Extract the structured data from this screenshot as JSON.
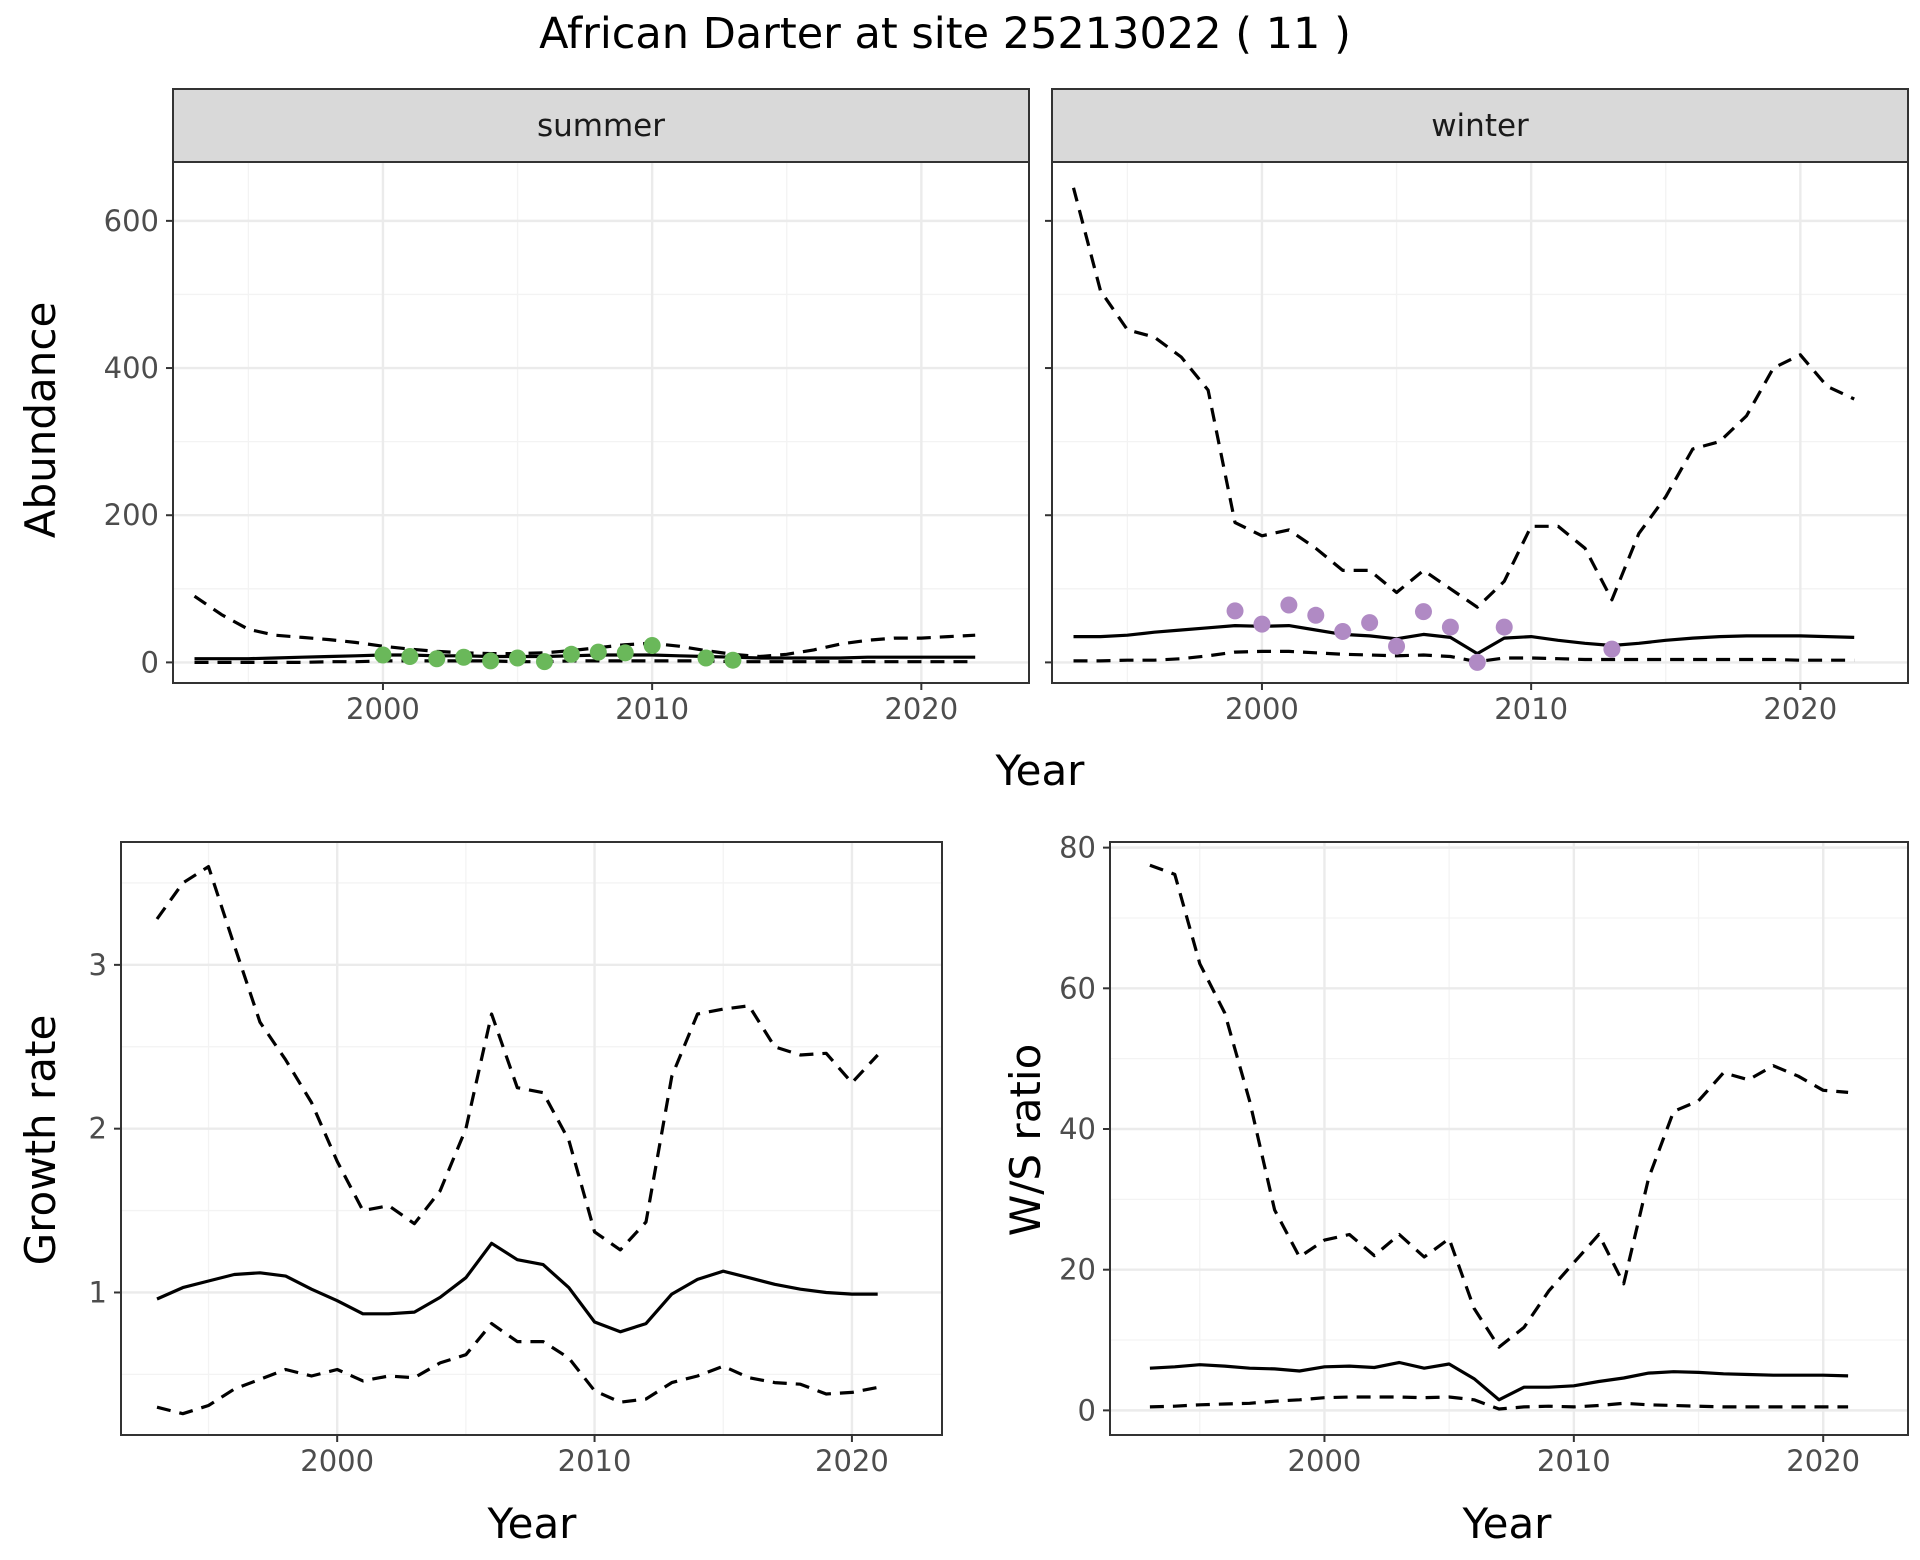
{
  "title": "African Darter at site 25213022 ( 11 )",
  "colors": {
    "summer_points": "#6ab85a",
    "winter_points": "#b08ac4",
    "line": "#000000",
    "grid_major": "#ebebeb",
    "grid_minor": "#f3f3f3",
    "strip_bg": "#d9d9d9",
    "panel_border": "#333333",
    "tick_text": "#4d4d4d"
  },
  "chart_data": [
    {
      "type": "line",
      "facet": "summer",
      "xlabel": "Year",
      "ylabel": "Abundance",
      "xlim": [
        1992.2,
        2024.0
      ],
      "ylim": [
        -28,
        680
      ],
      "xticks": [
        2000,
        2010,
        2020
      ],
      "yticks": [
        0,
        200,
        400,
        600
      ],
      "grid": true,
      "series": [
        {
          "role": "estimate",
          "style": "solid",
          "x": [
            1993,
            1994,
            1995,
            1996,
            1997,
            1998,
            1999,
            2000,
            2001,
            2002,
            2003,
            2004,
            2005,
            2006,
            2007,
            2008,
            2009,
            2010,
            2011,
            2012,
            2013,
            2014,
            2015,
            2016,
            2017,
            2018,
            2019,
            2020,
            2021,
            2022
          ],
          "y": [
            5,
            5,
            5,
            6,
            7,
            8,
            9,
            10,
            10,
            9,
            9,
            8,
            8,
            8,
            9,
            10,
            10,
            10,
            9,
            8,
            7,
            6,
            6,
            6,
            6,
            7,
            7,
            7,
            7,
            7
          ]
        },
        {
          "role": "upper",
          "style": "dashed",
          "x": [
            1993,
            1994,
            1995,
            1996,
            1997,
            1998,
            1999,
            2000,
            2001,
            2002,
            2003,
            2004,
            2005,
            2006,
            2007,
            2008,
            2009,
            2010,
            2011,
            2012,
            2013,
            2014,
            2015,
            2016,
            2017,
            2018,
            2019,
            2020,
            2021,
            2022
          ],
          "y": [
            90,
            65,
            45,
            37,
            34,
            31,
            27,
            22,
            18,
            15,
            13,
            12,
            12,
            13,
            16,
            20,
            24,
            26,
            22,
            16,
            11,
            8,
            11,
            17,
            25,
            30,
            33,
            33,
            35,
            37
          ]
        },
        {
          "role": "lower",
          "style": "dashed",
          "x": [
            1993,
            1994,
            1995,
            1996,
            1997,
            1998,
            1999,
            2000,
            2001,
            2002,
            2003,
            2004,
            2005,
            2006,
            2007,
            2008,
            2009,
            2010,
            2011,
            2012,
            2013,
            2014,
            2015,
            2016,
            2017,
            2018,
            2019,
            2020,
            2021,
            2022
          ],
          "y": [
            0,
            0,
            0,
            0,
            0,
            1,
            1,
            2,
            2,
            2,
            2,
            2,
            1,
            1,
            2,
            2,
            2,
            2,
            2,
            2,
            1,
            1,
            1,
            1,
            1,
            1,
            1,
            1,
            1,
            1
          ]
        }
      ],
      "points": {
        "x": [
          2000,
          2001,
          2002,
          2003,
          2004,
          2005,
          2006,
          2007,
          2008,
          2009,
          2010,
          2012,
          2013
        ],
        "y": [
          10,
          8,
          5,
          7,
          2,
          6,
          1,
          11,
          14,
          13,
          23,
          6,
          3
        ]
      }
    },
    {
      "type": "line",
      "facet": "winter",
      "xlabel": "Year",
      "ylabel": "Abundance",
      "xlim": [
        1992.2,
        2024.0
      ],
      "ylim": [
        -28,
        680
      ],
      "xticks": [
        2000,
        2010,
        2020
      ],
      "yticks": [
        0,
        200,
        400,
        600
      ],
      "grid": true,
      "series": [
        {
          "role": "estimate",
          "style": "solid",
          "x": [
            1993,
            1994,
            1995,
            1996,
            1997,
            1998,
            1999,
            2000,
            2001,
            2002,
            2003,
            2004,
            2005,
            2006,
            2007,
            2008,
            2009,
            2010,
            2011,
            2012,
            2013,
            2014,
            2015,
            2016,
            2017,
            2018,
            2019,
            2020,
            2021,
            2022
          ],
          "y": [
            35,
            35,
            37,
            41,
            44,
            47,
            50,
            49,
            50,
            44,
            38,
            36,
            32,
            38,
            34,
            12,
            33,
            35,
            30,
            26,
            23,
            26,
            30,
            33,
            35,
            36,
            36,
            36,
            35,
            34
          ]
        },
        {
          "role": "upper",
          "style": "dashed",
          "x": [
            1993,
            1994,
            1995,
            1996,
            1997,
            1998,
            1999,
            2000,
            2001,
            2002,
            2003,
            2004,
            2005,
            2006,
            2007,
            2008,
            2009,
            2010,
            2011,
            2012,
            2013,
            2014,
            2015,
            2016,
            2017,
            2018,
            2019,
            2020,
            2021,
            2022
          ],
          "y": [
            645,
            505,
            452,
            442,
            415,
            370,
            190,
            172,
            180,
            155,
            125,
            125,
            95,
            125,
            100,
            75,
            110,
            185,
            185,
            155,
            85,
            175,
            225,
            290,
            300,
            335,
            400,
            418,
            375,
            358
          ]
        },
        {
          "role": "lower",
          "style": "dashed",
          "x": [
            1993,
            1994,
            1995,
            1996,
            1997,
            1998,
            1999,
            2000,
            2001,
            2002,
            2003,
            2004,
            2005,
            2006,
            2007,
            2008,
            2009,
            2010,
            2011,
            2012,
            2013,
            2014,
            2015,
            2016,
            2017,
            2018,
            2019,
            2020,
            2021,
            2022
          ],
          "y": [
            2,
            2,
            3,
            3,
            5,
            9,
            14,
            15,
            15,
            13,
            11,
            10,
            9,
            10,
            8,
            1,
            6,
            6,
            5,
            4,
            4,
            4,
            4,
            4,
            4,
            4,
            4,
            3,
            3,
            3
          ]
        }
      ],
      "points": {
        "x": [
          1999,
          2000,
          2001,
          2002,
          2003,
          2004,
          2005,
          2006,
          2007,
          2008,
          2009,
          2013
        ],
        "y": [
          70,
          52,
          78,
          64,
          42,
          54,
          22,
          69,
          48,
          0,
          48,
          18
        ]
      }
    },
    {
      "type": "line",
      "xlabel": "Year",
      "ylabel": "Growth rate",
      "xlim": [
        1991.6,
        2023.5
      ],
      "ylim": [
        0.13,
        3.75
      ],
      "xticks": [
        2000,
        2010,
        2020
      ],
      "yticks": [
        1,
        2,
        3
      ],
      "grid": true,
      "series": [
        {
          "role": "estimate",
          "style": "solid",
          "x": [
            1993,
            1994,
            1995,
            1996,
            1997,
            1998,
            1999,
            2000,
            2001,
            2002,
            2003,
            2004,
            2005,
            2006,
            2007,
            2008,
            2009,
            2010,
            2011,
            2012,
            2013,
            2014,
            2015,
            2016,
            2017,
            2018,
            2019,
            2020,
            2021
          ],
          "y": [
            0.96,
            1.03,
            1.07,
            1.11,
            1.12,
            1.1,
            1.02,
            0.95,
            0.87,
            0.87,
            0.88,
            0.97,
            1.09,
            1.3,
            1.2,
            1.17,
            1.03,
            0.82,
            0.76,
            0.81,
            0.99,
            1.08,
            1.13,
            1.09,
            1.05,
            1.02,
            1.0,
            0.99,
            0.99
          ]
        },
        {
          "role": "upper",
          "style": "dashed",
          "x": [
            1993,
            1994,
            1995,
            1996,
            1997,
            1998,
            1999,
            2000,
            2001,
            2002,
            2003,
            2004,
            2005,
            2006,
            2007,
            2008,
            2009,
            2010,
            2011,
            2012,
            2013,
            2014,
            2015,
            2016,
            2017,
            2018,
            2019,
            2020,
            2021
          ],
          "y": [
            3.28,
            3.5,
            3.6,
            3.12,
            2.65,
            2.42,
            2.16,
            1.8,
            1.5,
            1.53,
            1.42,
            1.62,
            2.0,
            2.7,
            2.25,
            2.22,
            1.93,
            1.37,
            1.26,
            1.43,
            2.32,
            2.7,
            2.73,
            2.75,
            2.5,
            2.45,
            2.46,
            2.28,
            2.45
          ]
        },
        {
          "role": "lower",
          "style": "dashed",
          "x": [
            1993,
            1994,
            1995,
            1996,
            1997,
            1998,
            1999,
            2000,
            2001,
            2002,
            2003,
            2004,
            2005,
            2006,
            2007,
            2008,
            2009,
            2010,
            2011,
            2012,
            2013,
            2014,
            2015,
            2016,
            2017,
            2018,
            2019,
            2020,
            2021
          ],
          "y": [
            0.3,
            0.26,
            0.31,
            0.41,
            0.47,
            0.53,
            0.49,
            0.53,
            0.46,
            0.49,
            0.48,
            0.57,
            0.62,
            0.81,
            0.7,
            0.7,
            0.6,
            0.4,
            0.33,
            0.35,
            0.45,
            0.49,
            0.55,
            0.48,
            0.45,
            0.44,
            0.38,
            0.39,
            0.42
          ]
        }
      ]
    },
    {
      "type": "line",
      "xlabel": "Year",
      "ylabel": "W/S ratio",
      "xlim": [
        1991.4,
        2023.4
      ],
      "ylim": [
        -3.5,
        80.8
      ],
      "xticks": [
        2000,
        2010,
        2020
      ],
      "yticks": [
        0,
        20,
        40,
        60,
        80
      ],
      "grid": true,
      "series": [
        {
          "role": "estimate",
          "style": "solid",
          "x": [
            1993,
            1994,
            1995,
            1996,
            1997,
            1998,
            1999,
            2000,
            2001,
            2002,
            2003,
            2004,
            2005,
            2006,
            2007,
            2008,
            2009,
            2010,
            2011,
            2012,
            2013,
            2014,
            2015,
            2016,
            2017,
            2018,
            2019,
            2020,
            2021
          ],
          "y": [
            6.0,
            6.2,
            6.5,
            6.3,
            6.0,
            5.9,
            5.6,
            6.2,
            6.3,
            6.1,
            6.8,
            6.0,
            6.6,
            4.5,
            1.5,
            3.3,
            3.3,
            3.5,
            4.1,
            4.6,
            5.3,
            5.5,
            5.4,
            5.2,
            5.1,
            5.0,
            5.0,
            5.0,
            4.9
          ]
        },
        {
          "role": "upper",
          "style": "dashed",
          "x": [
            1993,
            1994,
            1995,
            1996,
            1997,
            1998,
            1999,
            2000,
            2001,
            2002,
            2003,
            2004,
            2005,
            2006,
            2007,
            2008,
            2009,
            2010,
            2011,
            2012,
            2013,
            2014,
            2015,
            2016,
            2017,
            2018,
            2019,
            2020,
            2021
          ],
          "y": [
            77.5,
            76.2,
            63.5,
            56.5,
            44.0,
            28.5,
            21.8,
            24.2,
            25.0,
            22.0,
            25.0,
            21.8,
            24.4,
            14.5,
            9.0,
            11.8,
            17.0,
            21.0,
            25.0,
            18.0,
            33.0,
            42.5,
            44.0,
            48.0,
            47.0,
            49.0,
            47.5,
            45.5,
            45.2
          ]
        },
        {
          "role": "lower",
          "style": "dashed",
          "x": [
            1993,
            1994,
            1995,
            1996,
            1997,
            1998,
            1999,
            2000,
            2001,
            2002,
            2003,
            2004,
            2005,
            2006,
            2007,
            2008,
            2009,
            2010,
            2011,
            2012,
            2013,
            2014,
            2015,
            2016,
            2017,
            2018,
            2019,
            2020,
            2021
          ],
          "y": [
            0.5,
            0.6,
            0.8,
            0.9,
            1.0,
            1.3,
            1.5,
            1.8,
            1.9,
            1.9,
            1.9,
            1.8,
            1.9,
            1.5,
            0.2,
            0.5,
            0.6,
            0.5,
            0.7,
            1.0,
            0.8,
            0.7,
            0.6,
            0.5,
            0.5,
            0.5,
            0.5,
            0.5,
            0.5
          ]
        }
      ]
    }
  ]
}
